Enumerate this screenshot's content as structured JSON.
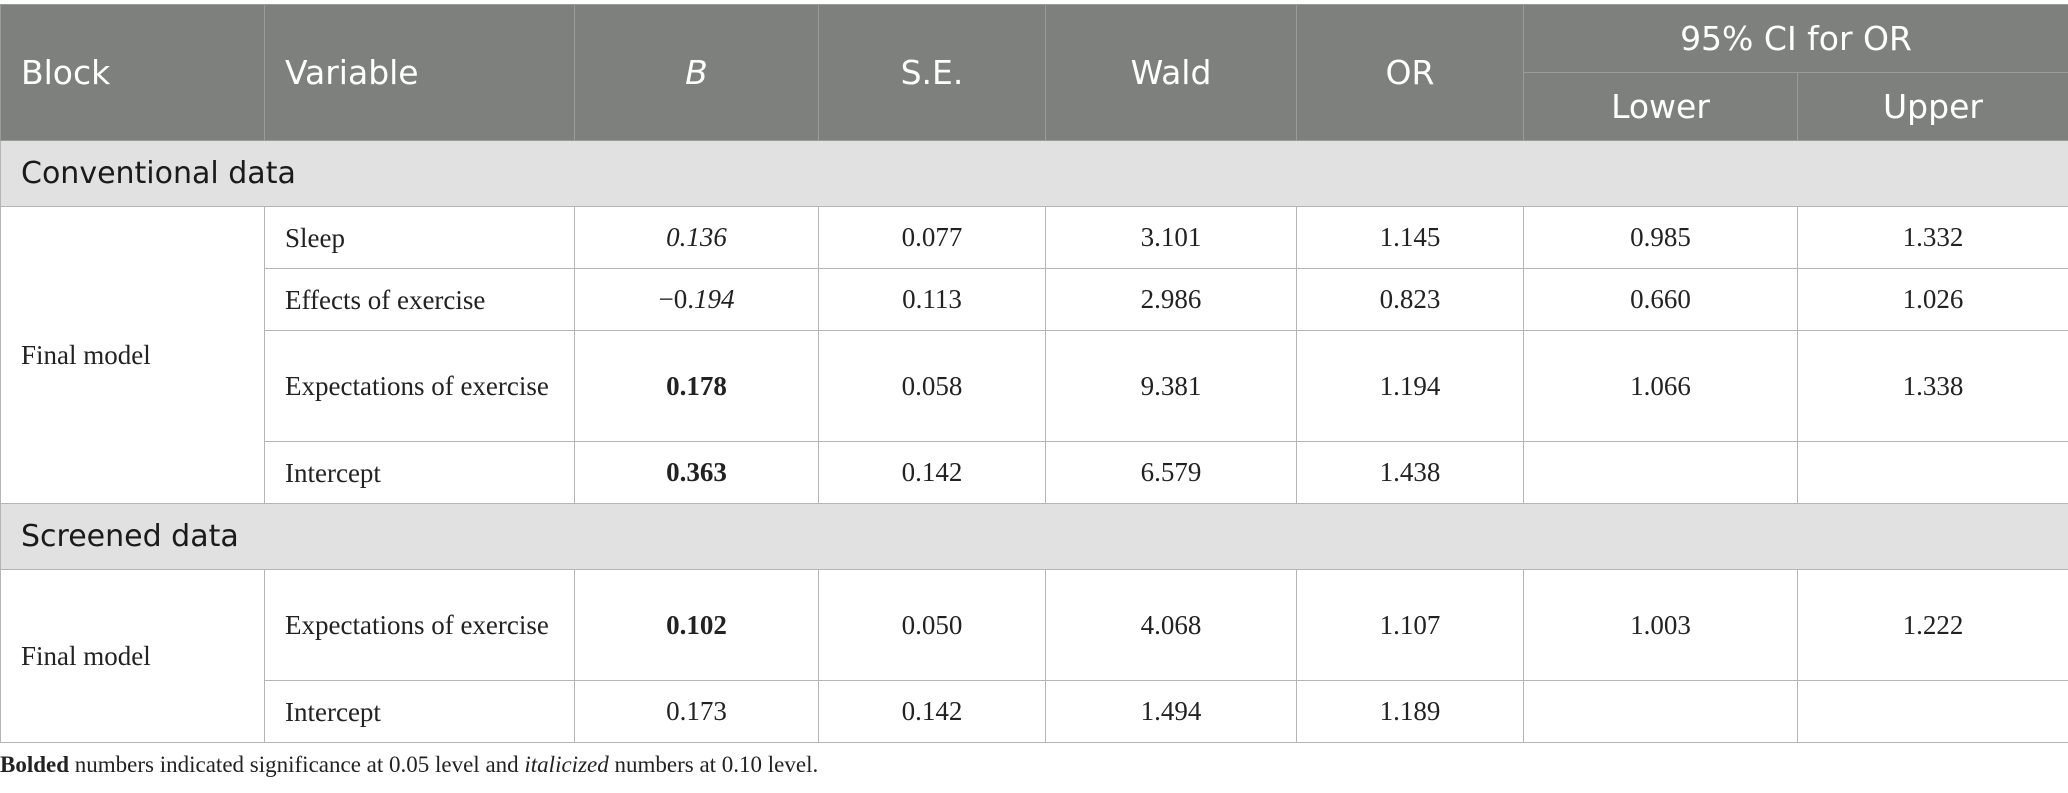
{
  "header": {
    "block": "Block",
    "variable": "Variable",
    "b": "B",
    "se": "S.E.",
    "wald": "Wald",
    "or": "OR",
    "ci": "95% CI for OR",
    "lower": "Lower",
    "upper": "Upper"
  },
  "sections": [
    {
      "title": "Conventional data",
      "block": "Final model",
      "rows": [
        {
          "variable": "Sleep",
          "b": "0.136",
          "se": "0.077",
          "wald": "3.101",
          "or": "1.145",
          "lower": "0.985",
          "upper": "1.332"
        },
        {
          "variable": "Effects of exercise",
          "b_sign": "−0.",
          "b_rest": "194",
          "se": "0.113",
          "wald": "2.986",
          "or": "0.823",
          "lower": "0.660",
          "upper": "1.026"
        },
        {
          "variable": "Expectations of exercise",
          "b": "0.178",
          "se": "0.058",
          "wald": "9.381",
          "or": "1.194",
          "lower": "1.066",
          "upper": "1.338"
        },
        {
          "variable": "Intercept",
          "b": "0.363",
          "se": "0.142",
          "wald": "6.579",
          "or": "1.438",
          "lower": "",
          "upper": ""
        }
      ]
    },
    {
      "title": "Screened data",
      "block": "Final model",
      "rows": [
        {
          "variable": "Expectations of exercise",
          "b": "0.102",
          "se": "0.050",
          "wald": "4.068",
          "or": "1.107",
          "lower": "1.003",
          "upper": "1.222"
        },
        {
          "variable": "Intercept",
          "b": "0.173",
          "se": "0.142",
          "wald": "1.494",
          "or": "1.189",
          "lower": "",
          "upper": ""
        }
      ]
    }
  ],
  "note": {
    "bold_word": "Bolded",
    "mid": " numbers indicated significance at 0.05 level and ",
    "italic_word": "italicized",
    "end": " numbers at 0.10 level."
  }
}
